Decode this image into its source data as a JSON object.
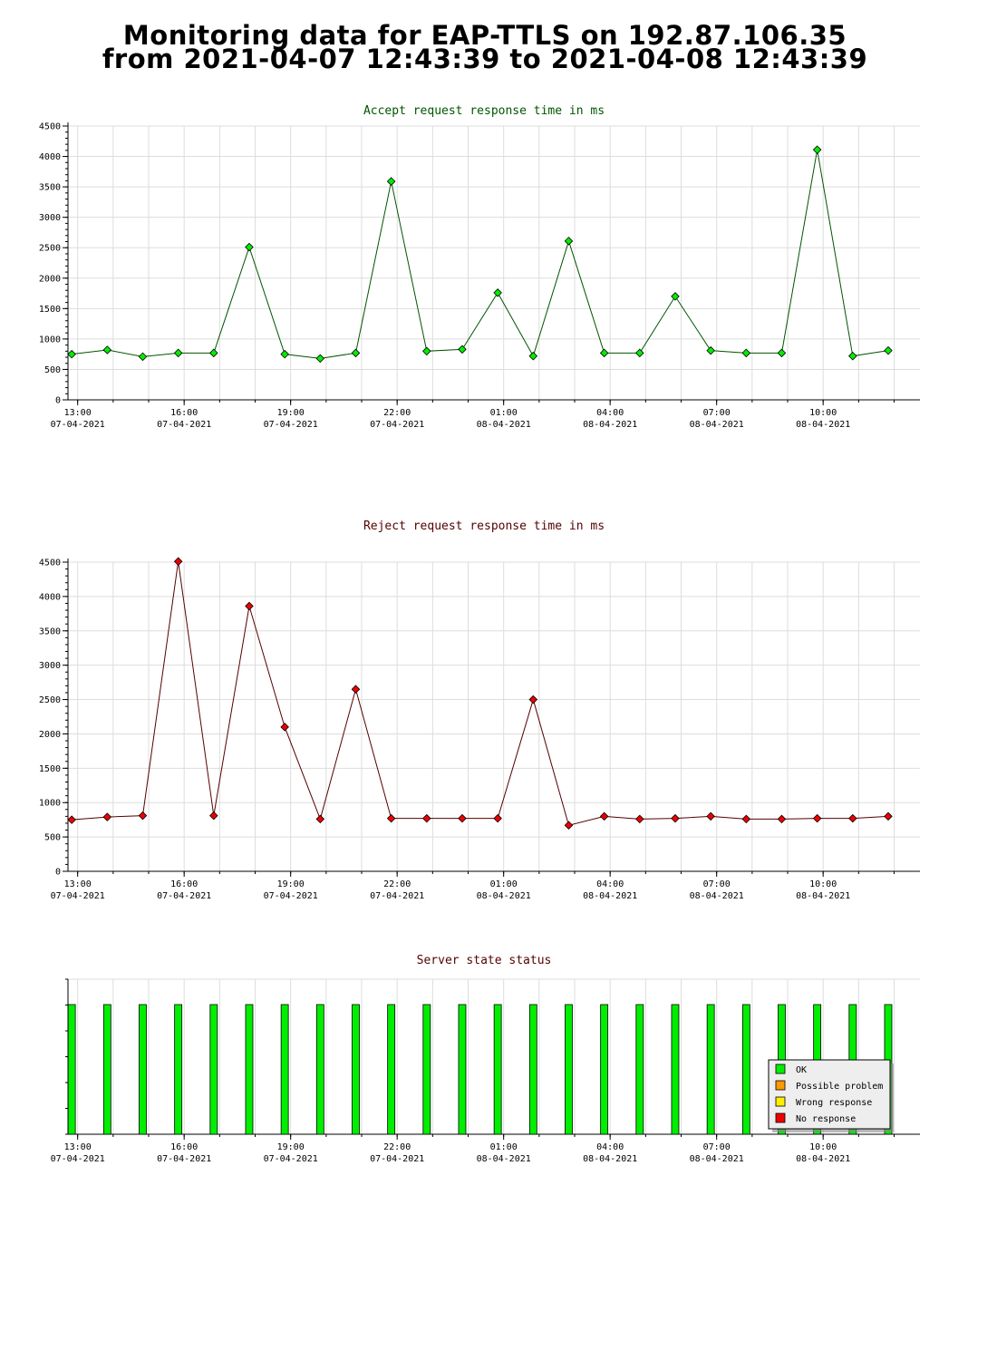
{
  "header": {
    "title_line1": "Monitoring data for EAP-TTLS on 192.87.106.35",
    "title_line2": "from 2021-04-07 12:43:39 to 2021-04-08 12:43:39"
  },
  "x_ticks": [
    {
      "time": "13:00",
      "date": "07-04-2021"
    },
    {
      "time": "16:00",
      "date": "07-04-2021"
    },
    {
      "time": "19:00",
      "date": "07-04-2021"
    },
    {
      "time": "22:00",
      "date": "07-04-2021"
    },
    {
      "time": "01:00",
      "date": "08-04-2021"
    },
    {
      "time": "04:00",
      "date": "08-04-2021"
    },
    {
      "time": "07:00",
      "date": "08-04-2021"
    },
    {
      "time": "10:00",
      "date": "08-04-2021"
    }
  ],
  "chart_data": [
    {
      "type": "line",
      "title": "Accept request response time in ms",
      "ylim": [
        0,
        4500
      ],
      "yticks": [
        0,
        500,
        1000,
        1500,
        2000,
        2500,
        3000,
        3500,
        4000,
        4500
      ],
      "grid": true,
      "color": "#00ee00",
      "line_color": "#005500",
      "series": [
        {
          "x": [
            "2021-04-07 12:50",
            "2021-04-07 13:50",
            "2021-04-07 14:50",
            "2021-04-07 15:50",
            "2021-04-07 16:50",
            "2021-04-07 17:50",
            "2021-04-07 18:50",
            "2021-04-07 19:50",
            "2021-04-07 20:50",
            "2021-04-07 21:50",
            "2021-04-07 22:50",
            "2021-04-07 23:50",
            "2021-04-08 00:50",
            "2021-04-08 01:50",
            "2021-04-08 02:50",
            "2021-04-08 03:50",
            "2021-04-08 04:50",
            "2021-04-08 05:50",
            "2021-04-08 06:50",
            "2021-04-08 07:50",
            "2021-04-08 08:50",
            "2021-04-08 09:50",
            "2021-04-08 10:50",
            "2021-04-08 11:50"
          ],
          "values": [
            750,
            820,
            710,
            770,
            770,
            2510,
            750,
            680,
            770,
            3590,
            800,
            830,
            1760,
            720,
            2610,
            770,
            770,
            1700,
            810,
            770,
            770,
            4110,
            720,
            810
          ]
        }
      ]
    },
    {
      "type": "line",
      "title": "Reject request response time in ms",
      "ylim": [
        0,
        4500
      ],
      "yticks": [
        0,
        500,
        1000,
        1500,
        2000,
        2500,
        3000,
        3500,
        4000,
        4500
      ],
      "grid": true,
      "color": "#ee0000",
      "line_color": "#550000",
      "series": [
        {
          "x": [
            "2021-04-07 12:50",
            "2021-04-07 13:50",
            "2021-04-07 14:50",
            "2021-04-07 15:50",
            "2021-04-07 16:50",
            "2021-04-07 17:50",
            "2021-04-07 18:50",
            "2021-04-07 19:50",
            "2021-04-07 20:50",
            "2021-04-07 21:50",
            "2021-04-07 22:50",
            "2021-04-07 23:50",
            "2021-04-08 00:50",
            "2021-04-08 01:50",
            "2021-04-08 02:50",
            "2021-04-08 03:50",
            "2021-04-08 04:50",
            "2021-04-08 05:50",
            "2021-04-08 06:50",
            "2021-04-08 07:50",
            "2021-04-08 08:50",
            "2021-04-08 09:50",
            "2021-04-08 10:50",
            "2021-04-08 11:50"
          ],
          "values": [
            750,
            790,
            810,
            4510,
            810,
            3860,
            2100,
            760,
            2650,
            770,
            770,
            770,
            770,
            2500,
            670,
            800,
            760,
            770,
            800,
            760,
            760,
            770,
            770,
            800
          ]
        }
      ]
    },
    {
      "type": "bar",
      "title": "Server state status",
      "x": [
        "2021-04-07 12:50",
        "2021-04-07 13:50",
        "2021-04-07 14:50",
        "2021-04-07 15:50",
        "2021-04-07 16:50",
        "2021-04-07 17:50",
        "2021-04-07 18:50",
        "2021-04-07 19:50",
        "2021-04-07 20:50",
        "2021-04-07 21:50",
        "2021-04-07 22:50",
        "2021-04-07 23:50",
        "2021-04-08 00:50",
        "2021-04-08 01:50",
        "2021-04-08 02:50",
        "2021-04-08 03:50",
        "2021-04-08 04:50",
        "2021-04-08 05:50",
        "2021-04-08 06:50",
        "2021-04-08 07:50",
        "2021-04-08 08:50",
        "2021-04-08 09:50",
        "2021-04-08 10:50",
        "2021-04-08 11:50"
      ],
      "status": [
        "OK",
        "OK",
        "OK",
        "OK",
        "OK",
        "OK",
        "OK",
        "OK",
        "OK",
        "OK",
        "OK",
        "OK",
        "OK",
        "OK",
        "OK",
        "OK",
        "OK",
        "OK",
        "OK",
        "OK",
        "OK",
        "OK",
        "OK",
        "OK"
      ],
      "legend_position": "bottom-right",
      "legend": [
        {
          "label": "OK",
          "color": "#00ee00"
        },
        {
          "label": "Possible problem",
          "color": "#ff9900"
        },
        {
          "label": "Wrong response",
          "color": "#ffee00"
        },
        {
          "label": "No response",
          "color": "#ee0000"
        }
      ]
    }
  ]
}
